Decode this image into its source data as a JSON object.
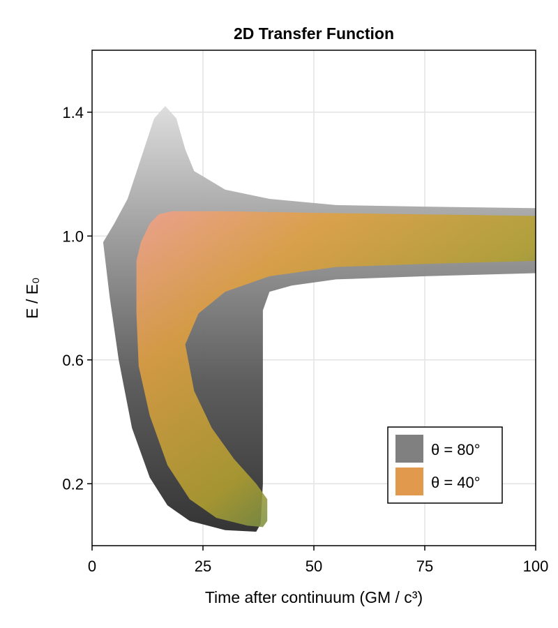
{
  "chart_data": {
    "type": "area",
    "title": "2D Transfer Function",
    "xlabel": "Time after continuum (GM / c³)",
    "ylabel": "E / E₀",
    "xlim": [
      0,
      100
    ],
    "ylim": [
      0,
      1.6
    ],
    "xticks": [
      0,
      25,
      50,
      75,
      100
    ],
    "yticks": [
      0.2,
      0.6,
      1.0,
      1.4
    ],
    "grid": true,
    "legend_position": "lower-right",
    "series": [
      {
        "name": "θ = 80°",
        "color": "#808080",
        "outline": [
          [
            2.5,
            0.98
          ],
          [
            5,
            1.04
          ],
          [
            8,
            1.12
          ],
          [
            11,
            1.25
          ],
          [
            14,
            1.38
          ],
          [
            16.5,
            1.42
          ],
          [
            19,
            1.38
          ],
          [
            21,
            1.28
          ],
          [
            23,
            1.21
          ],
          [
            30,
            1.15
          ],
          [
            40,
            1.12
          ],
          [
            55,
            1.1
          ],
          [
            75,
            1.095
          ],
          [
            100,
            1.09
          ],
          [
            100,
            0.88
          ],
          [
            75,
            0.87
          ],
          [
            55,
            0.86
          ],
          [
            45,
            0.84
          ],
          [
            40,
            0.82
          ],
          [
            38.5,
            0.76
          ],
          [
            38.5,
            0.2
          ],
          [
            38,
            0.07
          ],
          [
            37,
            0.045
          ],
          [
            30,
            0.05
          ],
          [
            22,
            0.08
          ],
          [
            17,
            0.13
          ],
          [
            13,
            0.22
          ],
          [
            9,
            0.38
          ],
          [
            6,
            0.6
          ],
          [
            4,
            0.8
          ]
        ]
      },
      {
        "name": "θ = 40°",
        "color": "#e1994e",
        "outline": [
          [
            10,
            0.92
          ],
          [
            11,
            0.98
          ],
          [
            13,
            1.04
          ],
          [
            15,
            1.07
          ],
          [
            18,
            1.08
          ],
          [
            30,
            1.08
          ],
          [
            50,
            1.075
          ],
          [
            75,
            1.07
          ],
          [
            100,
            1.065
          ],
          [
            100,
            0.92
          ],
          [
            75,
            0.91
          ],
          [
            55,
            0.9
          ],
          [
            40,
            0.87
          ],
          [
            30,
            0.82
          ],
          [
            24,
            0.75
          ],
          [
            21,
            0.65
          ],
          [
            23,
            0.5
          ],
          [
            27,
            0.38
          ],
          [
            32,
            0.28
          ],
          [
            37,
            0.2
          ],
          [
            39.5,
            0.15
          ],
          [
            39.5,
            0.08
          ],
          [
            38.5,
            0.06
          ],
          [
            35,
            0.065
          ],
          [
            28,
            0.09
          ],
          [
            22,
            0.15
          ],
          [
            17,
            0.26
          ],
          [
            13,
            0.42
          ],
          [
            10.5,
            0.58
          ],
          [
            10,
            0.75
          ]
        ]
      }
    ]
  }
}
